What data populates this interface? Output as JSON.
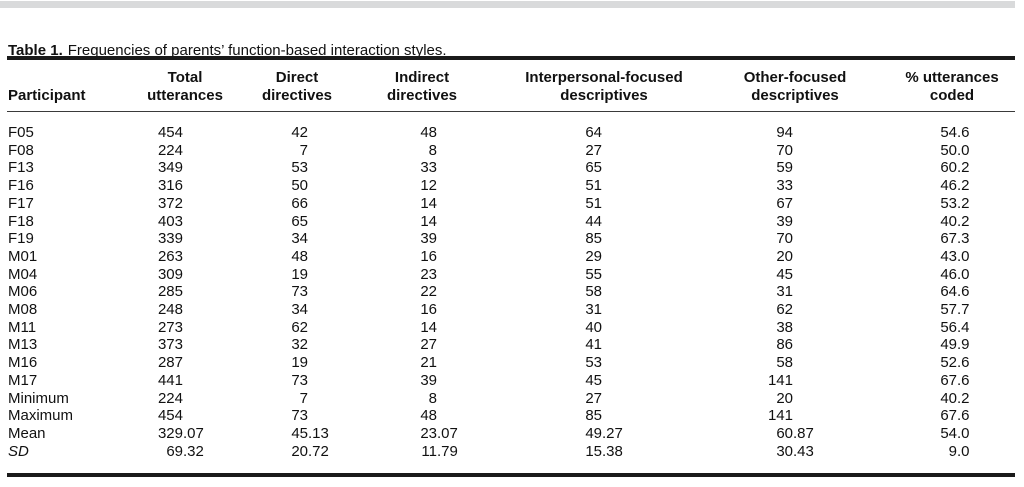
{
  "caption": {
    "label": "Table 1.",
    "text": "Frequencies of parents’ function-based interaction styles."
  },
  "colors": {
    "rule": "#1a1a1a",
    "top_bar": "#d9dadb",
    "text": "#111111"
  },
  "table": {
    "columns": [
      {
        "key": "participant",
        "label": "Participant",
        "label_lines": [
          "Participant"
        ]
      },
      {
        "key": "total-utterances",
        "label": "Total utterances",
        "label_lines": [
          "Total",
          "utterances"
        ]
      },
      {
        "key": "direct-directives",
        "label": "Direct directives",
        "label_lines": [
          "Direct",
          "directives"
        ]
      },
      {
        "key": "indirect-directives",
        "label": "Indirect directives",
        "label_lines": [
          "Indirect",
          "directives"
        ]
      },
      {
        "key": "interpersonal-focused-descriptives",
        "label": "Interpersonal-focused descriptives",
        "label_lines": [
          "Interpersonal-focused",
          "descriptives"
        ]
      },
      {
        "key": "other-focused-descriptives",
        "label": "Other-focused descriptives",
        "label_lines": [
          "Other-focused",
          "descriptives"
        ]
      },
      {
        "key": "pct-utterances-coded",
        "label": "% utterances coded",
        "label_lines": [
          "% utterances",
          "coded"
        ]
      }
    ],
    "rows": [
      {
        "cells": [
          "F05",
          "454",
          "42",
          "48",
          "64",
          "94",
          "54.6"
        ]
      },
      {
        "cells": [
          "F08",
          "224",
          "7",
          "8",
          "27",
          "70",
          "50.0"
        ]
      },
      {
        "cells": [
          "F13",
          "349",
          "53",
          "33",
          "65",
          "59",
          "60.2"
        ]
      },
      {
        "cells": [
          "F16",
          "316",
          "50",
          "12",
          "51",
          "33",
          "46.2"
        ]
      },
      {
        "cells": [
          "F17",
          "372",
          "66",
          "14",
          "51",
          "67",
          "53.2"
        ]
      },
      {
        "cells": [
          "F18",
          "403",
          "65",
          "14",
          "44",
          "39",
          "40.2"
        ]
      },
      {
        "cells": [
          "F19",
          "339",
          "34",
          "39",
          "85",
          "70",
          "67.3"
        ]
      },
      {
        "cells": [
          "M01",
          "263",
          "48",
          "16",
          "29",
          "20",
          "43.0"
        ]
      },
      {
        "cells": [
          "M04",
          "309",
          "19",
          "23",
          "55",
          "45",
          "46.0"
        ]
      },
      {
        "cells": [
          "M06",
          "285",
          "73",
          "22",
          "58",
          "31",
          "64.6"
        ]
      },
      {
        "cells": [
          "M08",
          "248",
          "34",
          "16",
          "31",
          "62",
          "57.7"
        ]
      },
      {
        "cells": [
          "M11",
          "273",
          "62",
          "14",
          "40",
          "38",
          "56.4"
        ]
      },
      {
        "cells": [
          "M13",
          "373",
          "32",
          "27",
          "41",
          "86",
          "49.9"
        ]
      },
      {
        "cells": [
          "M16",
          "287",
          "19",
          "21",
          "53",
          "58",
          "52.6"
        ]
      },
      {
        "cells": [
          "M17",
          "441",
          "73",
          "39",
          "45",
          "141",
          "67.6"
        ]
      },
      {
        "cells": [
          "Minimum",
          "224",
          "7",
          "8",
          "27",
          "20",
          "40.2"
        ]
      },
      {
        "cells": [
          "Maximum",
          "454",
          "73",
          "48",
          "85",
          "141",
          "67.6"
        ]
      },
      {
        "cells": [
          "Mean",
          "329.07",
          "45.13",
          "23.07",
          "49.27",
          "60.87",
          "54.0"
        ]
      },
      {
        "cells": [
          "SD",
          "69.32",
          "20.72",
          "11.79",
          "15.38",
          "30.43",
          "9.0"
        ],
        "label_italic": true
      }
    ]
  }
}
